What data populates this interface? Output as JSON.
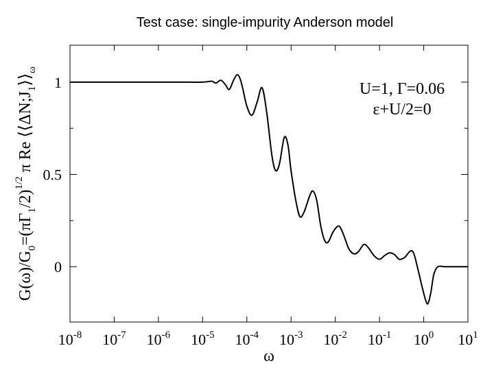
{
  "slide_title": "Test case: single-impurity Anderson model",
  "chart_data": {
    "type": "line",
    "title": "",
    "xlabel": "ω",
    "ylabel": {
      "prefix": "G(ω)/G",
      "sub0": "0",
      "mid": "=(πΓ",
      "sub1": "1",
      "mid2": "/2)",
      "sup": "1/2",
      "end": " π Re ⟨⟨ΔN;J",
      "sub2": "1",
      "close": "⟩⟩",
      "subw": "ω"
    },
    "x_scale": "log",
    "xlim": [
      1e-08,
      10
    ],
    "ylim": [
      -0.3,
      1.2
    ],
    "x_ticks": [
      {
        "value": 1e-08,
        "base": "10",
        "exp": "-8"
      },
      {
        "value": 1e-07,
        "base": "10",
        "exp": "-7"
      },
      {
        "value": 1e-06,
        "base": "10",
        "exp": "-6"
      },
      {
        "value": 1e-05,
        "base": "10",
        "exp": "-5"
      },
      {
        "value": 0.0001,
        "base": "10",
        "exp": "-4"
      },
      {
        "value": 0.001,
        "base": "10",
        "exp": "-3"
      },
      {
        "value": 0.01,
        "base": "10",
        "exp": "-2"
      },
      {
        "value": 0.1,
        "base": "10",
        "exp": "-1"
      },
      {
        "value": 1,
        "base": "10",
        "exp": "0"
      },
      {
        "value": 10,
        "base": "10",
        "exp": "1"
      }
    ],
    "y_ticks": [
      {
        "value": 0,
        "label": "0"
      },
      {
        "value": 0.5,
        "label": "0.5"
      },
      {
        "value": 1,
        "label": "1"
      }
    ],
    "annotation": {
      "line1": "U=1, Γ=0.06",
      "line2": "ε+U/2=0"
    },
    "grid": false,
    "series": [
      {
        "points": [
          [
            1e-08,
            1.0
          ],
          [
            1e-07,
            1.0
          ],
          [
            1e-06,
            1.0
          ],
          [
            3e-06,
            1.0
          ],
          [
            1e-05,
            1.0
          ],
          [
            1.6e-05,
            1.005
          ],
          [
            2e-05,
            0.995
          ],
          [
            2.6e-05,
            1.01
          ],
          [
            3.3e-05,
            0.985
          ],
          [
            4e-05,
            0.96
          ],
          [
            5e-05,
            1.01
          ],
          [
            6e-05,
            1.04
          ],
          [
            7e-05,
            1.02
          ],
          [
            8e-05,
            0.97
          ],
          [
            0.0001,
            0.87
          ],
          [
            0.00013,
            0.82
          ],
          [
            0.00017,
            0.89
          ],
          [
            0.00022,
            0.97
          ],
          [
            0.00028,
            0.84
          ],
          [
            0.00037,
            0.6
          ],
          [
            0.00045,
            0.52
          ],
          [
            0.00055,
            0.56
          ],
          [
            0.0007,
            0.7
          ],
          [
            0.00085,
            0.66
          ],
          [
            0.001,
            0.52
          ],
          [
            0.0013,
            0.35
          ],
          [
            0.0016,
            0.27
          ],
          [
            0.002,
            0.3
          ],
          [
            0.0026,
            0.38
          ],
          [
            0.0031,
            0.41
          ],
          [
            0.0038,
            0.36
          ],
          [
            0.0047,
            0.22
          ],
          [
            0.0058,
            0.14
          ],
          [
            0.007,
            0.135
          ],
          [
            0.009,
            0.19
          ],
          [
            0.012,
            0.22
          ],
          [
            0.015,
            0.18
          ],
          [
            0.02,
            0.1
          ],
          [
            0.026,
            0.07
          ],
          [
            0.033,
            0.08
          ],
          [
            0.044,
            0.12
          ],
          [
            0.055,
            0.105
          ],
          [
            0.075,
            0.06
          ],
          [
            0.1,
            0.04
          ],
          [
            0.13,
            0.06
          ],
          [
            0.17,
            0.075
          ],
          [
            0.22,
            0.065
          ],
          [
            0.28,
            0.04
          ],
          [
            0.37,
            0.05
          ],
          [
            0.5,
            0.085
          ],
          [
            0.6,
            0.07
          ],
          [
            0.75,
            -0.02
          ],
          [
            0.9,
            -0.1
          ],
          [
            1.1,
            -0.18
          ],
          [
            1.25,
            -0.2
          ],
          [
            1.45,
            -0.14
          ],
          [
            1.7,
            -0.04
          ],
          [
            2.1,
            0.0
          ],
          [
            3.0,
            0.0
          ],
          [
            5.0,
            0.0
          ],
          [
            10,
            0.0
          ]
        ]
      }
    ]
  }
}
